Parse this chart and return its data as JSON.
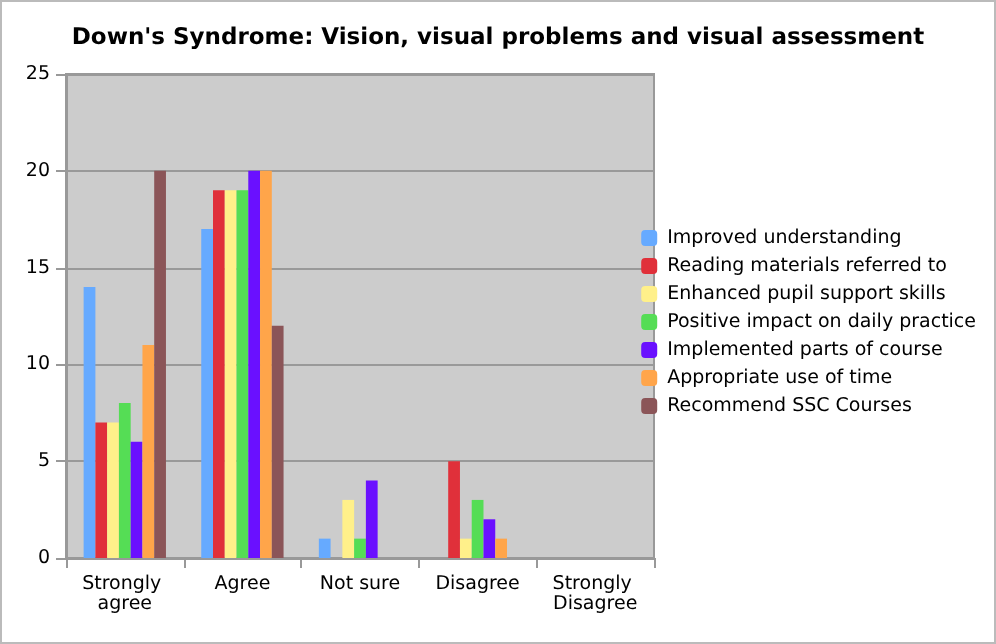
{
  "chart_data": {
    "type": "bar",
    "title": "Down's Syndrome: Vision, visual problems and visual assessment",
    "categories": [
      "Strongly agree",
      "Agree",
      "Not sure",
      "Disagree",
      "Strongly Disagree"
    ],
    "series": [
      {
        "name": "Improved understanding",
        "color": "#66aaff",
        "values": [
          14,
          17,
          1,
          0,
          0
        ]
      },
      {
        "name": "Reading materials referred to",
        "color": "#e0303a",
        "values": [
          7,
          19,
          0,
          5,
          0
        ]
      },
      {
        "name": "Enhanced pupil support skills",
        "color": "#fff08a",
        "values": [
          7,
          19,
          3,
          1,
          0
        ]
      },
      {
        "name": "Positive impact on daily practice",
        "color": "#55dd55",
        "values": [
          8,
          19,
          1,
          3,
          0
        ]
      },
      {
        "name": "Implemented parts of course",
        "color": "#6a10ff",
        "values": [
          6,
          20,
          4,
          2,
          0
        ]
      },
      {
        "name": "Appropriate use of time",
        "color": "#ffa54a",
        "values": [
          11,
          20,
          0,
          1,
          0
        ]
      },
      {
        "name": "Recommend SSC Courses",
        "color": "#8b5558",
        "values": [
          20,
          12,
          0,
          0,
          0
        ]
      }
    ],
    "ylim": [
      0,
      25
    ],
    "yticks": [
      0,
      5,
      10,
      15,
      20,
      25
    ],
    "grid": "y",
    "legend": "right"
  }
}
